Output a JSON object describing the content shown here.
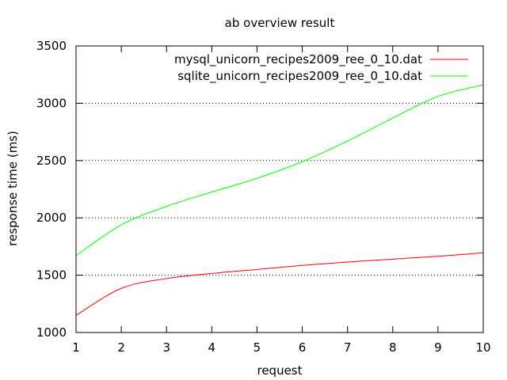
{
  "chart_data": {
    "type": "line",
    "title": "ab overview result",
    "xlabel": "request",
    "ylabel": "response time (ms)",
    "xlim": [
      1,
      10
    ],
    "ylim": [
      1000,
      3500
    ],
    "x_ticks": [
      1,
      2,
      3,
      4,
      5,
      6,
      7,
      8,
      9,
      10
    ],
    "y_ticks": [
      1000,
      1500,
      2000,
      2500,
      3000,
      3500
    ],
    "grid": "horizontal-dotted",
    "legend_position": "top-right",
    "x": [
      1,
      2,
      3,
      4,
      5,
      6,
      7,
      8,
      9,
      10
    ],
    "series": [
      {
        "name": "mysql_unicorn_recipes2009_ree_0_10.dat",
        "color": "#ff0000",
        "values": [
          1150,
          1385,
          1470,
          1515,
          1550,
          1585,
          1615,
          1640,
          1665,
          1695
        ]
      },
      {
        "name": "sqlite_unicorn_recipes2009_ree_0_10.dat",
        "color": "#00ff00",
        "values": [
          1670,
          1940,
          2100,
          2225,
          2345,
          2490,
          2670,
          2870,
          3060,
          3160
        ]
      }
    ]
  }
}
